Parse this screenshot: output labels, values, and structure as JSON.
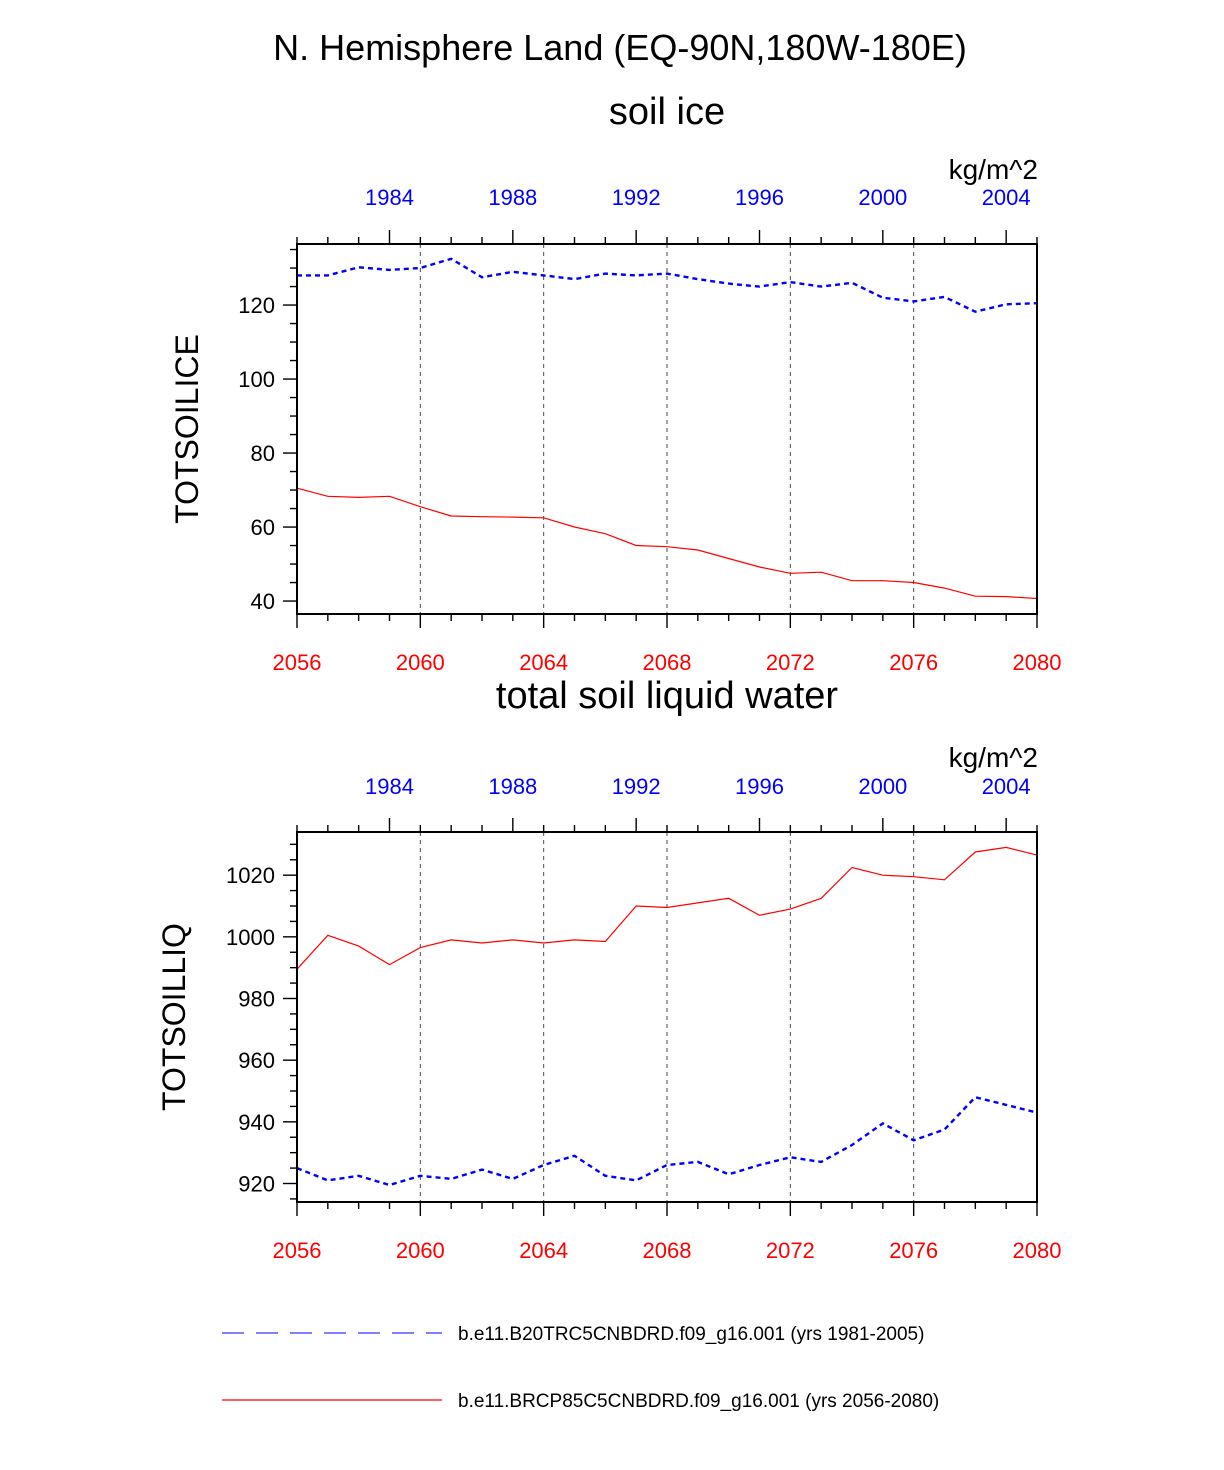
{
  "main_title": "N. Hemisphere Land (EQ-90N,180W-180E)",
  "colors": {
    "control": "#0000ff",
    "future": "#ff0000",
    "axis": "#000000",
    "grid": "#000000"
  },
  "legend": [
    {
      "name": "b.e11.B20TRC5CNBDRD.f09_g16.001 (yrs 1981-2005)",
      "style": "dashed",
      "color": "#0000ff"
    },
    {
      "name": "b.e11.BRCP85C5CNBDRD.f09_g16.001 (yrs 2056-2080)",
      "style": "solid",
      "color": "#ff0000"
    }
  ],
  "chart_data": [
    {
      "type": "line",
      "title": "soil ice",
      "units": "kg/m^2",
      "ylabel": "TOTSOILICE",
      "ylim": [
        36.5,
        136.5
      ],
      "yticks": [
        40,
        60,
        80,
        100,
        120
      ],
      "ytick_labels": [
        "40",
        "60",
        "80",
        "100",
        "120"
      ],
      "y_minor_step": 5,
      "bottom_axis": {
        "xlim": [
          2056,
          2080
        ],
        "ticks": [
          2056,
          2060,
          2064,
          2068,
          2072,
          2076,
          2080
        ],
        "tick_labels": [
          "2056",
          "2060",
          "2064",
          "2068",
          "2072",
          "2076",
          "2080"
        ]
      },
      "top_axis": {
        "xlim": [
          1981,
          2005
        ],
        "ticks": [
          1984,
          1988,
          1992,
          1996,
          2000,
          2004
        ],
        "tick_labels": [
          "1984",
          "1988",
          "1992",
          "1996",
          "2000",
          "2004"
        ]
      },
      "grid_x": [
        2060,
        2064,
        2068,
        2072,
        2076
      ],
      "series": [
        {
          "name": "b.e11.B20TRC5CNBDRD.f09_g16.001 (yrs 1981-2005)",
          "axis": "top",
          "style": "dashed",
          "color": "#0000ff",
          "x": [
            1981,
            1982,
            1983,
            1984,
            1985,
            1986,
            1987,
            1988,
            1989,
            1990,
            1991,
            1992,
            1993,
            1994,
            1995,
            1996,
            1997,
            1998,
            1999,
            2000,
            2001,
            2002,
            2003,
            2004,
            2005
          ],
          "values": [
            128.0,
            128.0,
            130.2,
            129.5,
            130.0,
            132.5,
            127.5,
            129.0,
            128.0,
            127.0,
            128.5,
            128.0,
            128.5,
            127.0,
            125.8,
            125.0,
            126.2,
            125.0,
            126.0,
            122.0,
            121.0,
            122.2,
            118.2,
            120.2,
            120.5
          ]
        },
        {
          "name": "b.e11.BRCP85C5CNBDRD.f09_g16.001 (yrs 2056-2080)",
          "axis": "bottom",
          "style": "solid",
          "color": "#ff0000",
          "x": [
            2056,
            2057,
            2058,
            2059,
            2060,
            2061,
            2062,
            2063,
            2064,
            2065,
            2066,
            2067,
            2068,
            2069,
            2070,
            2071,
            2072,
            2073,
            2074,
            2075,
            2076,
            2077,
            2078,
            2079,
            2080
          ],
          "values": [
            70.5,
            68.3,
            68.0,
            68.3,
            65.5,
            63.0,
            62.8,
            62.7,
            62.5,
            60.0,
            58.2,
            55.0,
            54.7,
            53.8,
            51.5,
            49.2,
            47.5,
            47.8,
            45.5,
            45.5,
            45.0,
            43.5,
            41.3,
            41.2,
            40.7
          ]
        }
      ]
    },
    {
      "type": "line",
      "title": "total soil liquid water",
      "units": "kg/m^2",
      "ylabel": "TOTSOILLIQ",
      "ylim": [
        914,
        1034
      ],
      "yticks": [
        920,
        940,
        960,
        980,
        1000,
        1020
      ],
      "ytick_labels": [
        "920",
        "940",
        "960",
        "980",
        "1000",
        "1020"
      ],
      "y_minor_step": 5,
      "bottom_axis": {
        "xlim": [
          2056,
          2080
        ],
        "ticks": [
          2056,
          2060,
          2064,
          2068,
          2072,
          2076,
          2080
        ],
        "tick_labels": [
          "2056",
          "2060",
          "2064",
          "2068",
          "2072",
          "2076",
          "2080"
        ]
      },
      "top_axis": {
        "xlim": [
          1981,
          2005
        ],
        "ticks": [
          1984,
          1988,
          1992,
          1996,
          2000,
          2004
        ],
        "tick_labels": [
          "1984",
          "1988",
          "1992",
          "1996",
          "2000",
          "2004"
        ]
      },
      "grid_x": [
        2060,
        2064,
        2068,
        2072,
        2076
      ],
      "series": [
        {
          "name": "b.e11.B20TRC5CNBDRD.f09_g16.001 (yrs 1981-2005)",
          "axis": "top",
          "style": "dashed",
          "color": "#0000ff",
          "x": [
            1981,
            1982,
            1983,
            1984,
            1985,
            1986,
            1987,
            1988,
            1989,
            1990,
            1991,
            1992,
            1993,
            1994,
            1995,
            1996,
            1997,
            1998,
            1999,
            2000,
            2001,
            2002,
            2003,
            2004,
            2005
          ],
          "values": [
            925.0,
            921.0,
            922.5,
            919.5,
            922.5,
            921.5,
            924.5,
            921.5,
            926.0,
            929.0,
            922.5,
            921.0,
            926.0,
            927.0,
            923.0,
            926.0,
            928.5,
            927.0,
            932.5,
            939.5,
            934.0,
            937.5,
            948.0,
            945.5,
            943.0
          ]
        },
        {
          "name": "b.e11.BRCP85C5CNBDRD.f09_g16.001 (yrs 2056-2080)",
          "axis": "bottom",
          "style": "solid",
          "color": "#ff0000",
          "x": [
            2056,
            2057,
            2058,
            2059,
            2060,
            2061,
            2062,
            2063,
            2064,
            2065,
            2066,
            2067,
            2068,
            2069,
            2070,
            2071,
            2072,
            2073,
            2074,
            2075,
            2076,
            2077,
            2078,
            2079,
            2080
          ],
          "values": [
            989.5,
            1000.5,
            997.0,
            991.0,
            996.5,
            999.0,
            998.0,
            999.0,
            998.0,
            999.0,
            998.5,
            1010.0,
            1009.5,
            1011.0,
            1012.5,
            1007.0,
            1009.0,
            1012.5,
            1022.5,
            1020.0,
            1019.5,
            1018.5,
            1027.5,
            1029.0,
            1026.5
          ]
        }
      ]
    }
  ]
}
